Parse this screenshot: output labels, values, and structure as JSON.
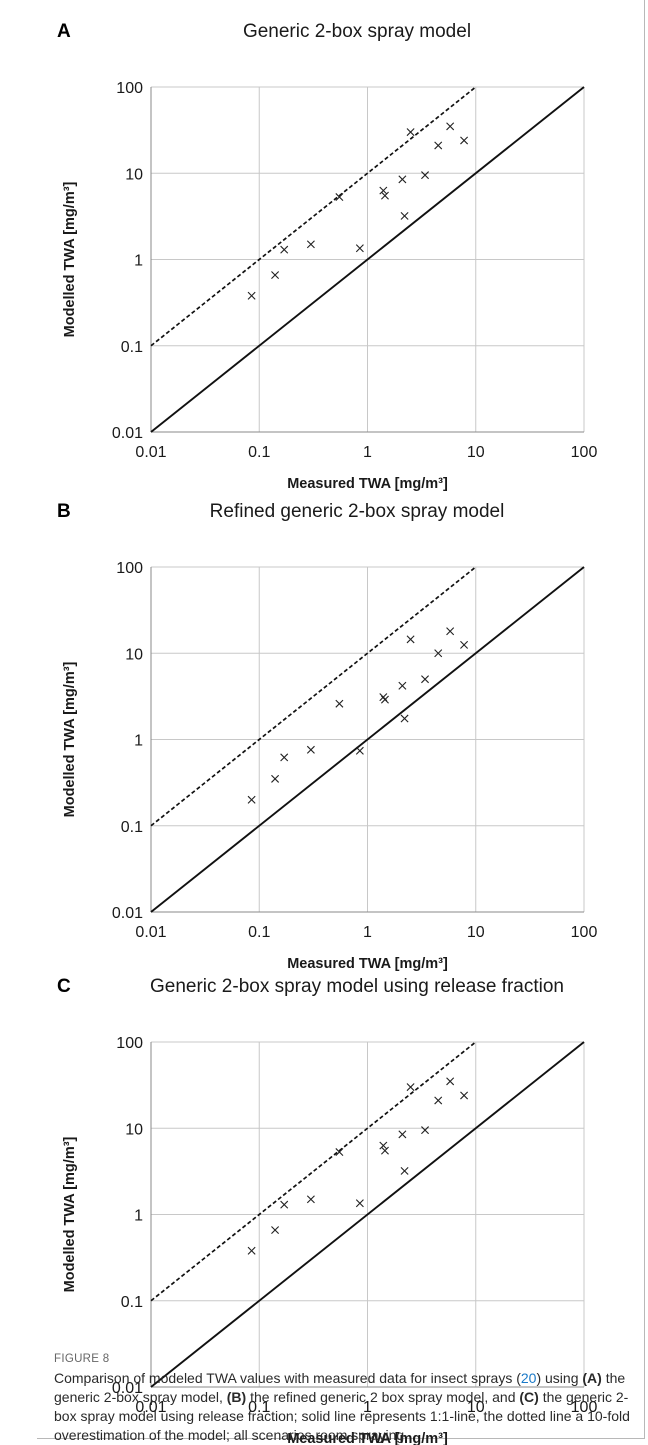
{
  "chart_data": [
    {
      "type": "scatter",
      "panel": "A",
      "title": "Generic 2-box spray model",
      "xlabel": "Measured TWA [mg/m³]",
      "ylabel": "Modelled TWA [mg/m³]",
      "xscale": "log",
      "yscale": "log",
      "xlim": [
        0.01,
        100
      ],
      "ylim": [
        0.01,
        100
      ],
      "xticks": [
        "0.01",
        "0.1",
        "1",
        "10",
        "100"
      ],
      "yticks": [
        "0.01",
        "0.1",
        "1",
        "10",
        "100"
      ],
      "grid": true,
      "marker": "x",
      "reference_lines": [
        {
          "style": "solid",
          "slope_factor": 1
        },
        {
          "style": "dotted",
          "slope_factor": 10
        }
      ],
      "points": [
        {
          "x": 0.085,
          "y": 0.38
        },
        {
          "x": 0.14,
          "y": 0.66
        },
        {
          "x": 0.17,
          "y": 1.3
        },
        {
          "x": 0.3,
          "y": 1.5
        },
        {
          "x": 0.55,
          "y": 5.3
        },
        {
          "x": 0.85,
          "y": 1.35
        },
        {
          "x": 1.4,
          "y": 6.3
        },
        {
          "x": 1.45,
          "y": 5.5
        },
        {
          "x": 2.1,
          "y": 8.5
        },
        {
          "x": 2.2,
          "y": 3.2
        },
        {
          "x": 2.5,
          "y": 30
        },
        {
          "x": 3.4,
          "y": 9.5
        },
        {
          "x": 4.5,
          "y": 21
        },
        {
          "x": 5.8,
          "y": 35
        },
        {
          "x": 7.8,
          "y": 24
        }
      ]
    },
    {
      "type": "scatter",
      "panel": "B",
      "title": "Refined generic 2-box spray model",
      "xlabel": "Measured TWA [mg/m³]",
      "ylabel": "Modelled TWA [mg/m³]",
      "xscale": "log",
      "yscale": "log",
      "xlim": [
        0.01,
        100
      ],
      "ylim": [
        0.01,
        100
      ],
      "xticks": [
        "0.01",
        "0.1",
        "1",
        "10",
        "100"
      ],
      "yticks": [
        "0.01",
        "0.1",
        "1",
        "10",
        "100"
      ],
      "grid": true,
      "marker": "x",
      "reference_lines": [
        {
          "style": "solid",
          "slope_factor": 1
        },
        {
          "style": "dotted",
          "slope_factor": 10
        }
      ],
      "points": [
        {
          "x": 0.085,
          "y": 0.2
        },
        {
          "x": 0.14,
          "y": 0.35
        },
        {
          "x": 0.17,
          "y": 0.62
        },
        {
          "x": 0.3,
          "y": 0.76
        },
        {
          "x": 0.55,
          "y": 2.6
        },
        {
          "x": 0.85,
          "y": 0.74
        },
        {
          "x": 1.4,
          "y": 3.1
        },
        {
          "x": 1.45,
          "y": 2.9
        },
        {
          "x": 2.1,
          "y": 4.2
        },
        {
          "x": 2.2,
          "y": 1.75
        },
        {
          "x": 2.5,
          "y": 14.5
        },
        {
          "x": 3.4,
          "y": 5.0
        },
        {
          "x": 4.5,
          "y": 10
        },
        {
          "x": 5.8,
          "y": 18
        },
        {
          "x": 7.8,
          "y": 12.5
        }
      ]
    },
    {
      "type": "scatter",
      "panel": "C",
      "title": "Generic 2-box spray model using release fraction",
      "xlabel": "Measured TWA [mg/m³]",
      "ylabel": "Modelled TWA [mg/m³]",
      "xscale": "log",
      "yscale": "log",
      "xlim": [
        0.01,
        100
      ],
      "ylim": [
        0.01,
        100
      ],
      "xticks": [
        "0.01",
        "0.1",
        "1",
        "10",
        "100"
      ],
      "yticks": [
        "0.01",
        "0.1",
        "1",
        "10",
        "100"
      ],
      "grid": true,
      "marker": "x",
      "reference_lines": [
        {
          "style": "solid",
          "slope_factor": 1
        },
        {
          "style": "dotted",
          "slope_factor": 10
        }
      ],
      "points": [
        {
          "x": 0.085,
          "y": 0.38
        },
        {
          "x": 0.14,
          "y": 0.66
        },
        {
          "x": 0.17,
          "y": 1.3
        },
        {
          "x": 0.3,
          "y": 1.5
        },
        {
          "x": 0.55,
          "y": 5.3
        },
        {
          "x": 0.85,
          "y": 1.35
        },
        {
          "x": 1.4,
          "y": 6.3
        },
        {
          "x": 1.45,
          "y": 5.5
        },
        {
          "x": 2.1,
          "y": 8.5
        },
        {
          "x": 2.2,
          "y": 3.2
        },
        {
          "x": 2.5,
          "y": 30
        },
        {
          "x": 3.4,
          "y": 9.5
        },
        {
          "x": 4.5,
          "y": 21
        },
        {
          "x": 5.8,
          "y": 35
        },
        {
          "x": 7.8,
          "y": 24
        }
      ]
    }
  ],
  "caption": {
    "label": "FIGURE 8",
    "text_1": "Comparison of modeled TWA values with measured data for insect sprays (",
    "ref": "20",
    "text_2": ") using ",
    "a": "(A)",
    "text_3": " the generic 2-box spray model, ",
    "b": "(B)",
    "text_4": " the refined generic 2 box spray model, and ",
    "c": "(C)",
    "text_5": " the generic 2-box spray model using release fraction; solid line represents 1:1-line, the dotted line a 10-fold overestimation of the model; all scenarios room spraying."
  }
}
